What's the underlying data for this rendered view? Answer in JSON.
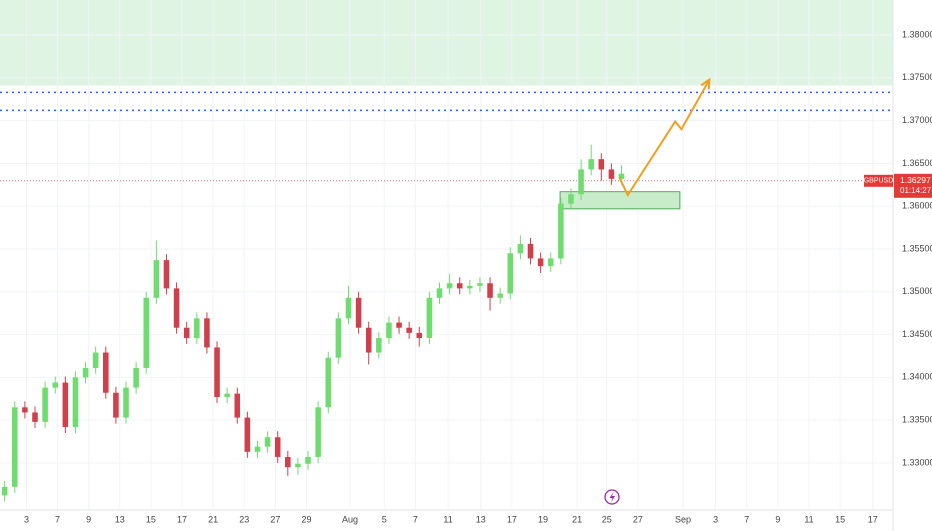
{
  "chart_data": {
    "type": "candlestick",
    "symbol": "GBPUSD",
    "last_price": {
      "value": 1.36297,
      "label": "1.36297"
    },
    "countdown": "01:14:27",
    "up_color": "#6fdc6f",
    "down_color": "#d0404a",
    "grid": true,
    "x": [
      -1.4,
      -0.75,
      -0.1,
      0.55,
      1.2,
      1.85,
      2.5,
      3.15,
      3.8,
      4.45,
      5.1,
      5.75,
      6.4,
      7.05,
      7.7,
      8.35,
      9,
      9.65,
      10.3,
      10.95,
      11.6,
      12.25,
      12.9,
      13.55,
      14.2,
      14.85,
      15.5,
      16.15,
      16.8,
      17.45,
      18.1,
      18.75,
      19.4,
      20.05,
      20.7,
      21.35,
      22,
      22.65,
      23.3,
      23.95,
      24.6,
      25.25,
      25.9,
      26.55,
      27.2,
      27.85,
      28.5,
      29.15,
      29.8,
      30.45,
      31.1,
      31.75,
      32.4,
      33.05,
      33.7,
      34.35,
      35,
      35.65,
      36.3,
      36.95,
      37.6,
      38.25
    ],
    "open": [
      1.3262,
      1.3272,
      1.3365,
      1.3359,
      1.3348,
      1.3388,
      1.3394,
      1.3342,
      1.34,
      1.3411,
      1.3429,
      1.3382,
      1.3353,
      1.3388,
      1.3411,
      1.3493,
      1.3537,
      1.3504,
      1.3458,
      1.3446,
      1.3469,
      1.3435,
      1.3377,
      1.3381,
      1.3353,
      1.3313,
      1.3319,
      1.333,
      1.3307,
      1.3295,
      1.3299,
      1.3307,
      1.3365,
      1.3423,
      1.3469,
      1.3493,
      1.3458,
      1.3429,
      1.3446,
      1.3464,
      1.3458,
      1.3452,
      1.3446,
      1.3493,
      1.3504,
      1.351,
      1.3504,
      1.3507,
      1.351,
      1.3493,
      1.3498,
      1.3545,
      1.3556,
      1.3539,
      1.353,
      1.3539,
      1.3603,
      1.3614,
      1.3643,
      1.3655,
      1.3643,
      1.3632
    ],
    "high": [
      1.3279,
      1.3372,
      1.3372,
      1.3366,
      1.3395,
      1.3401,
      1.3401,
      1.3407,
      1.3418,
      1.3436,
      1.3436,
      1.3389,
      1.3395,
      1.3418,
      1.35,
      1.356,
      1.3544,
      1.3511,
      1.3465,
      1.3476,
      1.3476,
      1.3442,
      1.3388,
      1.3388,
      1.336,
      1.3326,
      1.3337,
      1.3337,
      1.3314,
      1.3306,
      1.3314,
      1.3372,
      1.343,
      1.3476,
      1.3507,
      1.35,
      1.3465,
      1.3453,
      1.3471,
      1.3471,
      1.3465,
      1.3459,
      1.35,
      1.3511,
      1.3521,
      1.3517,
      1.3514,
      1.3517,
      1.3517,
      1.3505,
      1.3552,
      1.3566,
      1.3563,
      1.3546,
      1.3546,
      1.361,
      1.3621,
      1.3655,
      1.3672,
      1.3662,
      1.365,
      1.3648
    ],
    "low": [
      1.3255,
      1.3265,
      1.3352,
      1.3341,
      1.3341,
      1.3381,
      1.3335,
      1.3335,
      1.3393,
      1.3404,
      1.3375,
      1.3346,
      1.3346,
      1.3381,
      1.3404,
      1.3486,
      1.3497,
      1.3451,
      1.3439,
      1.3439,
      1.3428,
      1.337,
      1.337,
      1.3346,
      1.3306,
      1.3306,
      1.3312,
      1.33,
      1.3285,
      1.3286,
      1.3292,
      1.33,
      1.3358,
      1.3416,
      1.3462,
      1.3451,
      1.3415,
      1.3422,
      1.3439,
      1.3451,
      1.3445,
      1.3436,
      1.3439,
      1.3486,
      1.3497,
      1.3497,
      1.3497,
      1.35,
      1.3478,
      1.3486,
      1.3491,
      1.3538,
      1.3532,
      1.3522,
      1.3523,
      1.3532,
      1.3596,
      1.3607,
      1.3636,
      1.363,
      1.3625,
      1.3625
    ],
    "close": [
      1.3272,
      1.3365,
      1.3359,
      1.3348,
      1.3388,
      1.3394,
      1.3342,
      1.34,
      1.3411,
      1.3429,
      1.3382,
      1.3353,
      1.3388,
      1.3411,
      1.3493,
      1.3537,
      1.3504,
      1.3458,
      1.3446,
      1.3469,
      1.3435,
      1.3377,
      1.3381,
      1.3353,
      1.3313,
      1.3319,
      1.333,
      1.3307,
      1.3295,
      1.3299,
      1.3307,
      1.3365,
      1.3423,
      1.3469,
      1.3493,
      1.3458,
      1.3429,
      1.3446,
      1.3464,
      1.3458,
      1.3452,
      1.3446,
      1.3493,
      1.3504,
      1.351,
      1.3504,
      1.3507,
      1.351,
      1.3493,
      1.3498,
      1.3545,
      1.3556,
      1.3539,
      1.353,
      1.3539,
      1.3603,
      1.3614,
      1.3643,
      1.3655,
      1.3643,
      1.3632,
      1.3638
    ],
    "xlim": [
      -1.7,
      55.7
    ],
    "ylim": [
      1.3245,
      1.3841
    ],
    "xticks": [
      {
        "value": 0,
        "label": "3"
      },
      {
        "value": 2,
        "label": "7"
      },
      {
        "value": 4,
        "label": "9"
      },
      {
        "value": 6,
        "label": "13"
      },
      {
        "value": 8,
        "label": "15"
      },
      {
        "value": 10,
        "label": "17"
      },
      {
        "value": 12,
        "label": "21"
      },
      {
        "value": 14,
        "label": "23"
      },
      {
        "value": 16,
        "label": "27"
      },
      {
        "value": 18,
        "label": "29"
      },
      {
        "value": 20.8,
        "label": "Aug"
      },
      {
        "value": 23,
        "label": "5"
      },
      {
        "value": 25,
        "label": "7"
      },
      {
        "value": 27.1,
        "label": "11"
      },
      {
        "value": 29.2,
        "label": "13"
      },
      {
        "value": 31.2,
        "label": "17"
      },
      {
        "value": 33.2,
        "label": "19"
      },
      {
        "value": 35.4,
        "label": "21"
      },
      {
        "value": 37.3,
        "label": "25"
      },
      {
        "value": 39.3,
        "label": "27"
      },
      {
        "value": 42.2,
        "label": "Sep"
      },
      {
        "value": 44.3,
        "label": "3"
      },
      {
        "value": 46.3,
        "label": "7"
      },
      {
        "value": 48.3,
        "label": "9"
      },
      {
        "value": 50.3,
        "label": "11"
      },
      {
        "value": 52.3,
        "label": "15"
      },
      {
        "value": 54.4,
        "label": "17"
      }
    ],
    "yticks": [
      {
        "value": 1.33,
        "label": "1.33000"
      },
      {
        "value": 1.335,
        "label": "1.33500"
      },
      {
        "value": 1.34,
        "label": "1.34000"
      },
      {
        "value": 1.345,
        "label": "1.34500"
      },
      {
        "value": 1.35,
        "label": "1.35000"
      },
      {
        "value": 1.355,
        "label": "1.35500"
      },
      {
        "value": 1.36,
        "label": "1.36000"
      },
      {
        "value": 1.365,
        "label": "1.36500"
      },
      {
        "value": 1.37,
        "label": "1.37000"
      },
      {
        "value": 1.375,
        "label": "1.37500"
      },
      {
        "value": 1.38,
        "label": "1.38000"
      }
    ],
    "resistance_zone": {
      "from": 1.3741,
      "to": 1.3841,
      "color": "#d4f0d8"
    },
    "support_zone": {
      "from": 1.3597,
      "to": 1.3617,
      "x_from": 34.3,
      "x_to": 42.0,
      "color": "#c8ecc9"
    },
    "levels": {
      "values": [
        1.3733,
        1.3712
      ],
      "color": "#2962ff"
    },
    "forecast": {
      "x": [
        38.1,
        38.65,
        41.7,
        42.1,
        43.9
      ],
      "values": [
        1.3634,
        1.3613,
        1.3699,
        1.369,
        1.3748
      ],
      "color": "#f0a020"
    }
  }
}
